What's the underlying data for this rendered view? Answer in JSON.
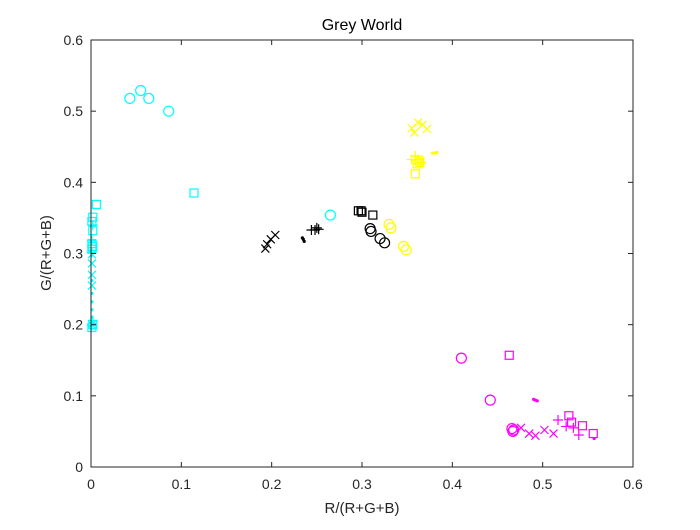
{
  "chart_data": {
    "type": "scatter",
    "title": "Grey World",
    "xlabel": "R/(R+G+B)",
    "ylabel": "G/(R+G+B)",
    "xlim": [
      0,
      0.6
    ],
    "ylim": [
      0,
      0.6
    ],
    "xticks": [
      0,
      0.1,
      0.2,
      0.3,
      0.4,
      0.5,
      0.6
    ],
    "yticks": [
      0,
      0.1,
      0.2,
      0.3,
      0.4,
      0.5,
      0.6
    ],
    "xtick_labels": [
      "0",
      "0.1",
      "0.2",
      "0.3",
      "0.4",
      "0.5",
      "0.6"
    ],
    "ytick_labels": [
      "0",
      "0.1",
      "0.2",
      "0.3",
      "0.4",
      "0.5",
      "0.6"
    ],
    "grid": false,
    "legend": "none",
    "colors": {
      "cyan": "#00ffff",
      "yellow": "#ffff00",
      "black": "#000000",
      "magenta": "#ff00ff",
      "axes": "#262626"
    },
    "series": [
      {
        "color": "cyan",
        "marker": "circle",
        "points": [
          [
            0.043,
            0.518
          ],
          [
            0.055,
            0.529
          ],
          [
            0.064,
            0.518
          ],
          [
            0.086,
            0.5
          ],
          [
            0.265,
            0.354
          ]
        ]
      },
      {
        "color": "cyan",
        "marker": "square",
        "points": [
          [
            0.114,
            0.385
          ],
          [
            0.006,
            0.369
          ],
          [
            0.002,
            0.351
          ],
          [
            0.001,
            0.345
          ],
          [
            0.002,
            0.332
          ],
          [
            0.001,
            0.314
          ],
          [
            0.002,
            0.31
          ],
          [
            0.001,
            0.306
          ],
          [
            0.002,
            0.2
          ],
          [
            0.001,
            0.196
          ]
        ]
      },
      {
        "color": "cyan",
        "marker": "x",
        "points": [
          [
            0.001,
            0.299
          ],
          [
            0.001,
            0.286
          ],
          [
            0.001,
            0.27
          ],
          [
            0.001,
            0.255
          ],
          [
            0.001,
            0.2
          ]
        ]
      },
      {
        "color": "cyan",
        "marker": "plus",
        "points": [
          [
            0.002,
            0.34
          ],
          [
            0.001,
            0.318
          ],
          [
            0.001,
            0.302
          ],
          [
            0.002,
            0.206
          ],
          [
            0.001,
            0.199
          ]
        ]
      },
      {
        "color": "cyan",
        "marker": "dot",
        "points": [
          [
            0.001,
            0.262
          ],
          [
            0.001,
            0.244
          ],
          [
            0.001,
            0.232
          ],
          [
            0.001,
            0.221
          ],
          [
            0.001,
            0.21
          ]
        ]
      },
      {
        "color": "yellow",
        "marker": "circle",
        "points": [
          [
            0.33,
            0.341
          ],
          [
            0.332,
            0.336
          ],
          [
            0.346,
            0.31
          ],
          [
            0.349,
            0.305
          ]
        ]
      },
      {
        "color": "yellow",
        "marker": "square",
        "points": [
          [
            0.359,
            0.412
          ],
          [
            0.361,
            0.426
          ],
          [
            0.363,
            0.431
          ],
          [
            0.364,
            0.428
          ]
        ]
      },
      {
        "color": "yellow",
        "marker": "x",
        "points": [
          [
            0.355,
            0.476
          ],
          [
            0.358,
            0.47
          ],
          [
            0.362,
            0.484
          ],
          [
            0.367,
            0.481
          ],
          [
            0.372,
            0.475
          ]
        ]
      },
      {
        "color": "yellow",
        "marker": "plus",
        "points": [
          [
            0.355,
            0.432
          ],
          [
            0.359,
            0.437
          ],
          [
            0.362,
            0.432
          ],
          [
            0.365,
            0.428
          ]
        ]
      },
      {
        "color": "yellow",
        "marker": "dot",
        "points": [
          [
            0.378,
            0.441
          ],
          [
            0.381,
            0.441
          ],
          [
            0.383,
            0.442
          ]
        ]
      },
      {
        "color": "black",
        "marker": "circle",
        "points": [
          [
            0.309,
            0.335
          ],
          [
            0.31,
            0.331
          ],
          [
            0.32,
            0.321
          ],
          [
            0.325,
            0.315
          ]
        ]
      },
      {
        "color": "black",
        "marker": "square",
        "points": [
          [
            0.296,
            0.36
          ],
          [
            0.299,
            0.36
          ],
          [
            0.3,
            0.358
          ],
          [
            0.312,
            0.354
          ]
        ]
      },
      {
        "color": "black",
        "marker": "x",
        "points": [
          [
            0.193,
            0.307
          ],
          [
            0.195,
            0.313
          ],
          [
            0.199,
            0.32
          ],
          [
            0.204,
            0.326
          ]
        ]
      },
      {
        "color": "black",
        "marker": "plus",
        "points": [
          [
            0.244,
            0.333
          ],
          [
            0.248,
            0.333
          ],
          [
            0.25,
            0.336
          ],
          [
            0.252,
            0.334
          ]
        ]
      },
      {
        "color": "black",
        "marker": "dot",
        "points": [
          [
            0.234,
            0.322
          ],
          [
            0.235,
            0.32
          ],
          [
            0.236,
            0.317
          ]
        ]
      },
      {
        "color": "magenta",
        "marker": "circle",
        "points": [
          [
            0.41,
            0.153
          ],
          [
            0.442,
            0.094
          ],
          [
            0.466,
            0.054
          ],
          [
            0.467,
            0.05
          ],
          [
            0.468,
            0.052
          ]
        ]
      },
      {
        "color": "magenta",
        "marker": "square",
        "points": [
          [
            0.463,
            0.157
          ],
          [
            0.529,
            0.072
          ],
          [
            0.532,
            0.063
          ],
          [
            0.544,
            0.058
          ],
          [
            0.556,
            0.047
          ]
        ]
      },
      {
        "color": "magenta",
        "marker": "x",
        "points": [
          [
            0.476,
            0.055
          ],
          [
            0.485,
            0.047
          ],
          [
            0.492,
            0.044
          ],
          [
            0.502,
            0.052
          ],
          [
            0.512,
            0.047
          ]
        ]
      },
      {
        "color": "magenta",
        "marker": "plus",
        "points": [
          [
            0.517,
            0.066
          ],
          [
            0.526,
            0.057
          ],
          [
            0.534,
            0.055
          ],
          [
            0.54,
            0.045
          ]
        ]
      },
      {
        "color": "magenta",
        "marker": "dot",
        "points": [
          [
            0.49,
            0.095
          ],
          [
            0.492,
            0.094
          ],
          [
            0.494,
            0.093
          ],
          [
            0.557,
            0.04
          ]
        ]
      }
    ]
  }
}
